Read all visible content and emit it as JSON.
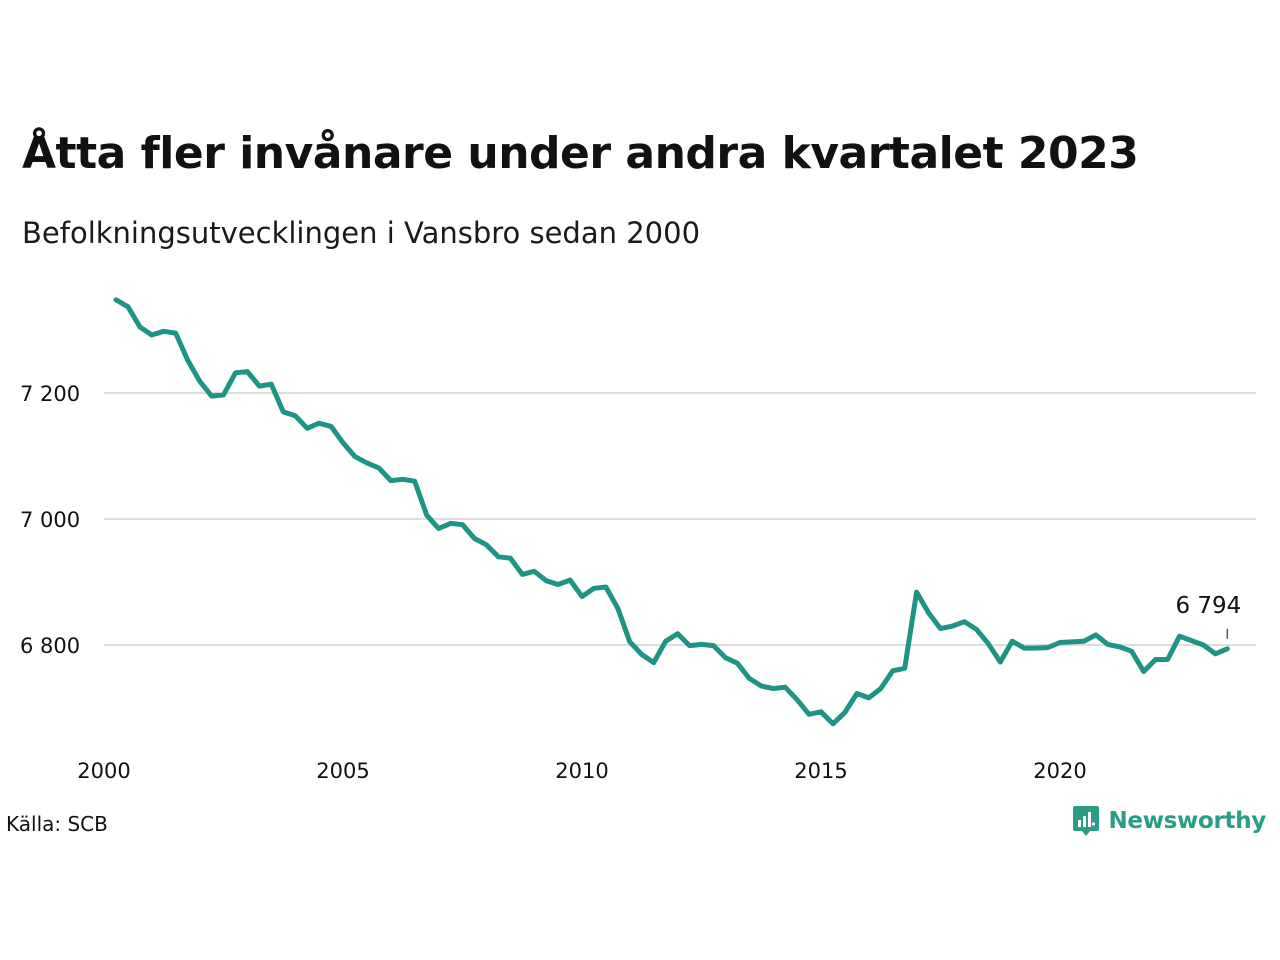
{
  "title": "Åtta fler invånare under andra kvartalet 2023",
  "subtitle": "Befolkningsutvecklingen i Vansbro sedan 2000",
  "source": "Källa: SCB",
  "brand": {
    "name": "Newsworthy",
    "icon": "newsworthy-logo-icon",
    "color": "#2a9d86"
  },
  "chart_data": {
    "type": "line",
    "xlabel": "",
    "ylabel": "",
    "xlim": [
      2000,
      2024.1
    ],
    "ylim": [
      6650,
      7380
    ],
    "grid": "horizontal",
    "line_color": "#1f9384",
    "x_ticks": [
      2000,
      2005,
      2010,
      2015,
      2020
    ],
    "y_ticks": [
      6800,
      7000,
      7200
    ],
    "y_tick_labels": [
      "6 800",
      "7 000",
      "7 200"
    ],
    "end_label": "6 794",
    "series": [
      {
        "x": [
          2000.25,
          2000.5,
          2000.75,
          2001.0,
          2001.25,
          2001.5,
          2001.75,
          2002.0,
          2002.25,
          2002.5,
          2002.75,
          2003.0,
          2003.25,
          2003.5,
          2003.75,
          2004.0,
          2004.25,
          2004.5,
          2004.75,
          2005.0,
          2005.25,
          2005.5,
          2005.75,
          2006.0,
          2006.25,
          2006.5,
          2006.75,
          2007.0,
          2007.25,
          2007.5,
          2007.75,
          2008.0,
          2008.25,
          2008.5,
          2008.75,
          2009.0,
          2009.25,
          2009.5,
          2009.75,
          2010.0,
          2010.25,
          2010.5,
          2010.75,
          2011.0,
          2011.25,
          2011.5,
          2011.75,
          2012.0,
          2012.25,
          2012.5,
          2012.75,
          2013.0,
          2013.25,
          2013.5,
          2013.75,
          2014.0,
          2014.25,
          2014.5,
          2014.75,
          2015.0,
          2015.25,
          2015.5,
          2015.75,
          2016.0,
          2016.25,
          2016.5,
          2016.75,
          2017.0,
          2017.25,
          2017.5,
          2017.75,
          2018.0,
          2018.25,
          2018.5,
          2018.75,
          2019.0,
          2019.25,
          2019.5,
          2019.75,
          2020.0,
          2020.25,
          2020.5,
          2020.75,
          2021.0,
          2021.25,
          2021.5,
          2021.75,
          2022.0,
          2022.25,
          2022.5,
          2022.75,
          2023.0,
          2023.25,
          2023.5
        ],
        "y": [
          7348,
          7337,
          7305,
          7292,
          7298,
          7295,
          7252,
          7219,
          7195,
          7197,
          7232,
          7234,
          7211,
          7214,
          7170,
          7164,
          7144,
          7152,
          7147,
          7121,
          7099,
          7089,
          7081,
          7061,
          7063,
          7060,
          7006,
          6985,
          6993,
          6991,
          6969,
          6959,
          6940,
          6938,
          6912,
          6917,
          6902,
          6896,
          6903,
          6877,
          6890,
          6892,
          6858,
          6805,
          6785,
          6772,
          6806,
          6818,
          6799,
          6801,
          6799,
          6780,
          6771,
          6747,
          6735,
          6731,
          6733,
          6713,
          6690,
          6694,
          6675,
          6693,
          6723,
          6716,
          6731,
          6759,
          6763,
          6884,
          6851,
          6826,
          6830,
          6837,
          6825,
          6802,
          6773,
          6806,
          6795,
          6795,
          6796,
          6804,
          6805,
          6806,
          6816,
          6801,
          6797,
          6790,
          6758,
          6777,
          6777,
          6814,
          6807,
          6800,
          6786,
          6794
        ]
      }
    ]
  }
}
